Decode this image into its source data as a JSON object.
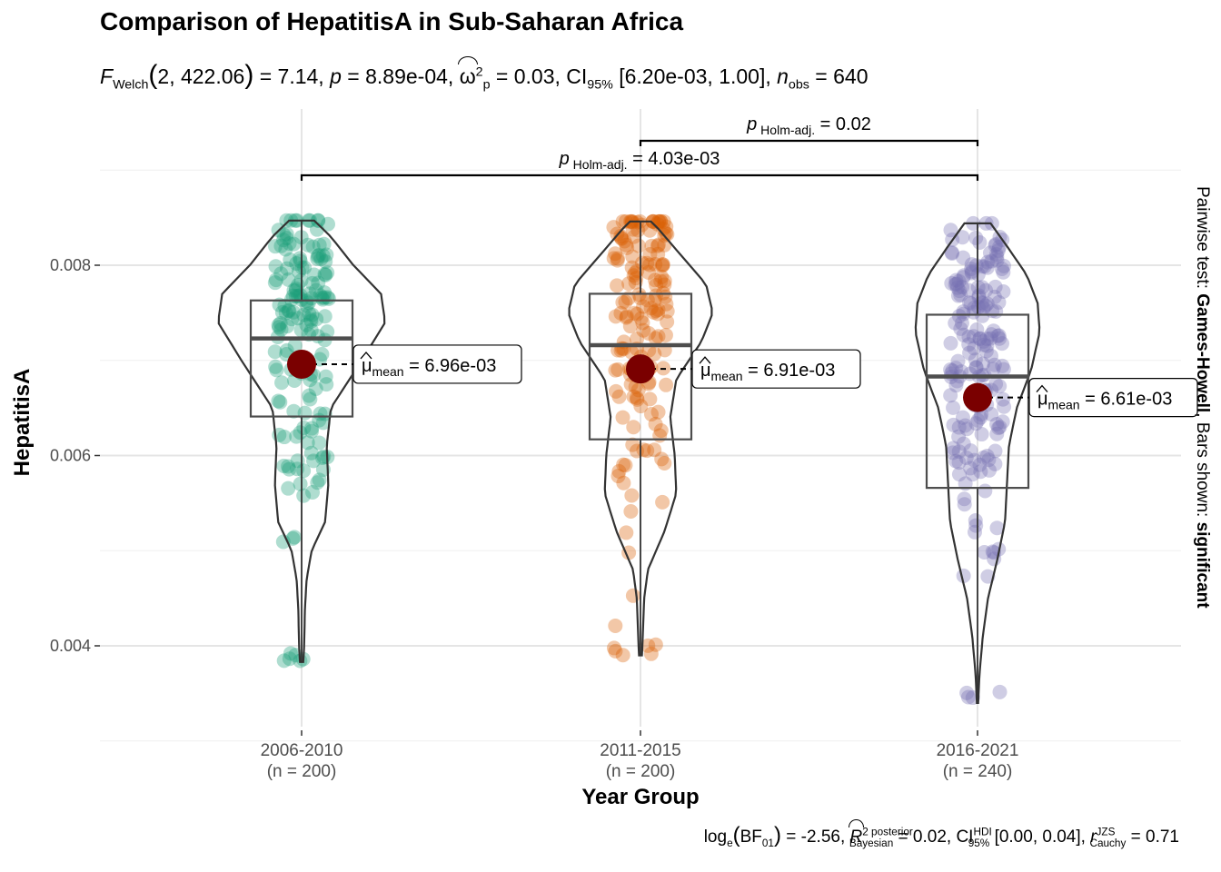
{
  "title": "Comparison of HepatitisA in Sub-Saharan Africa",
  "subtitle": {
    "stat_name": "F",
    "stat_sub": "Welch",
    "df": "2, 422.06",
    "stat_value": "= 7.14,",
    "p_text": "= 8.89e-04,",
    "effect_symbol": "ω",
    "effect_sup": "2",
    "effect_sub": "p",
    "effect_value": "= 0.03, CI",
    "ci_sub": "95%",
    "ci_value": "[6.20e-03, 1.00],",
    "n_sub": "obs",
    "n_value": "= 640"
  },
  "caption": {
    "bf_prefix": "log",
    "bf_e": "e",
    "bf_inner": "BF",
    "bf_inner_sub": "01",
    "bf_value": "= -2.56,",
    "r2_sup": "2 posterior",
    "r2_sub": "Bayesian",
    "r2_value": "= 0.02, CI",
    "ci_sup": "HDI",
    "ci_sub": "95%",
    "ci_value": "[0.00, 0.04],",
    "r_sup": "JZS",
    "r_sub": "Cauchy",
    "r_value": "= 0.71"
  },
  "side_label": {
    "prefix": "Pairwise test: ",
    "test": "Games-Howell",
    "middle": ", Bars shown: ",
    "shown": "significant"
  },
  "chart_data": {
    "type": "violin-box-scatter",
    "xlabel": "Year Group",
    "ylabel": "HepatitisA",
    "ylim": [
      0.0031,
      0.0098
    ],
    "yticks": [
      0.004,
      0.006,
      0.008
    ],
    "ytick_labels": [
      "0.004",
      "0.006",
      "0.008"
    ],
    "grid": true,
    "groups": [
      {
        "label": "2006-2010",
        "n_label": "(n = 200)",
        "color": "#1b9e77",
        "min": 0.00383,
        "q1": 0.00641,
        "median": 0.00723,
        "q3": 0.00763,
        "max": 0.00847,
        "mean": 0.00696,
        "mean_label": "= 6.96e-03"
      },
      {
        "label": "2011-2015",
        "n_label": "(n = 200)",
        "color": "#d95f02",
        "min": 0.0039,
        "q1": 0.00617,
        "median": 0.00716,
        "q3": 0.0077,
        "max": 0.00846,
        "mean": 0.00691,
        "mean_label": "= 6.91e-03"
      },
      {
        "label": "2016-2021",
        "n_label": "(n = 240)",
        "color": "#7570b3",
        "min": 0.0034,
        "q1": 0.00566,
        "median": 0.00683,
        "q3": 0.00748,
        "max": 0.00844,
        "mean": 0.00661,
        "mean_label": "= 6.61e-03"
      }
    ],
    "mean_symbol": "μ",
    "mean_sub": "mean",
    "comparisons": [
      {
        "from": 1,
        "to": 2,
        "p_sub": "Holm-adj.",
        "p_value": "= 0.02"
      },
      {
        "from": 0,
        "to": 2,
        "p_sub": "Holm-adj.",
        "p_value": "= 4.03e-03"
      }
    ]
  },
  "colors": {
    "mean_point": "#7a0000",
    "grid": "#e5e5e5",
    "outline": "#333333"
  }
}
